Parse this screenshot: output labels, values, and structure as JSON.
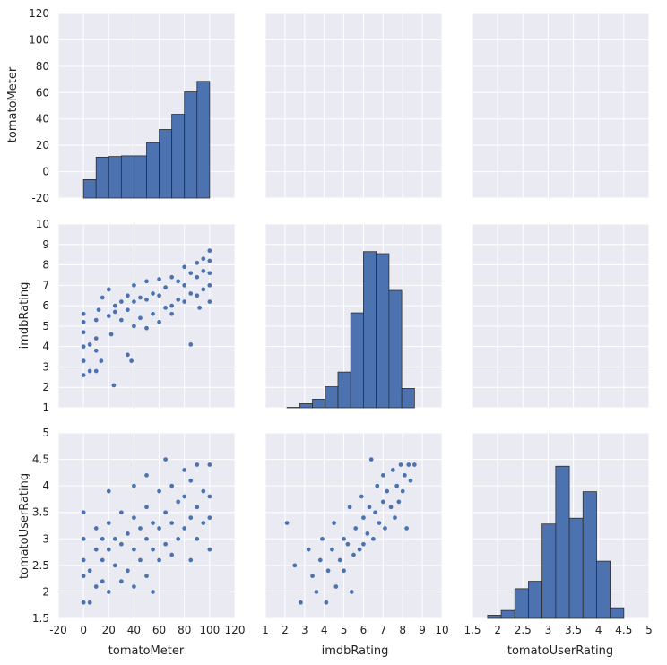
{
  "colors": {
    "panel_bg": "#EAEAF2",
    "grid": "#FFFFFF",
    "bar": "#4C72B0",
    "point": "#4C72B0",
    "edge": "#2d2d2d"
  },
  "chart_data": {
    "type": "scatter",
    "kind": "pairplot",
    "grid": true,
    "variables": [
      "tomatoMeter",
      "imdbRating",
      "tomatoUserRating"
    ],
    "axes": {
      "tomatoMeter": {
        "label": "tomatoMeter",
        "range": [
          -20,
          120
        ],
        "ticks": [
          -20,
          0,
          20,
          40,
          60,
          80,
          100,
          120
        ]
      },
      "imdbRating": {
        "label": "imdbRating",
        "range": [
          1,
          10
        ],
        "ticks": [
          1,
          2,
          3,
          4,
          5,
          6,
          7,
          8,
          9,
          10
        ]
      },
      "tomatoUserRating": {
        "label": "tomatoUserRating",
        "range": [
          1.5,
          5.0
        ],
        "ticks": [
          1.5,
          2.0,
          2.5,
          3.0,
          3.5,
          4.0,
          4.5,
          5.0
        ]
      }
    },
    "histograms": {
      "tomatoMeter": {
        "bin_edges": [
          0,
          10,
          20,
          30,
          40,
          50,
          60,
          70,
          80,
          90,
          100
        ],
        "heights": [
          -6,
          11,
          11.5,
          12,
          12,
          22,
          32,
          43.5,
          60.5,
          68.5
        ]
      },
      "imdbRating": {
        "bin_edges": [
          2.1,
          2.75,
          3.4,
          4.05,
          4.7,
          5.35,
          6.0,
          6.65,
          7.3,
          7.95,
          8.6
        ],
        "heights": [
          1.02,
          1.2,
          1.42,
          2.03,
          2.75,
          5.65,
          8.65,
          8.55,
          6.75,
          1.95
        ]
      },
      "tomatoUserRating": {
        "bin_edges": [
          1.8,
          2.07,
          2.34,
          2.61,
          2.88,
          3.15,
          3.42,
          3.69,
          3.96,
          4.23,
          4.5
        ],
        "heights": [
          1.56,
          1.65,
          2.06,
          2.2,
          3.28,
          4.37,
          3.39,
          3.89,
          2.58,
          1.7
        ]
      }
    },
    "scatter": {
      "tomatoMeter_vs_imdbRating": [
        [
          0,
          2.6
        ],
        [
          0,
          3.3
        ],
        [
          0,
          4.0
        ],
        [
          0,
          4.7
        ],
        [
          0,
          5.2
        ],
        [
          0,
          5.6
        ],
        [
          5,
          2.8
        ],
        [
          10,
          2.8
        ],
        [
          5,
          4.1
        ],
        [
          10,
          3.8
        ],
        [
          10,
          4.4
        ],
        [
          14,
          3.3
        ],
        [
          10,
          5.3
        ],
        [
          12,
          5.8
        ],
        [
          15,
          6.4
        ],
        [
          20,
          5.5
        ],
        [
          20,
          6.8
        ],
        [
          22,
          4.6
        ],
        [
          25,
          5.7
        ],
        [
          25,
          6.0
        ],
        [
          30,
          5.3
        ],
        [
          30,
          6.2
        ],
        [
          35,
          3.6
        ],
        [
          35,
          5.8
        ],
        [
          35,
          6.5
        ],
        [
          40,
          5.0
        ],
        [
          40,
          6.2
        ],
        [
          40,
          7.0
        ],
        [
          45,
          5.4
        ],
        [
          45,
          6.4
        ],
        [
          50,
          4.9
        ],
        [
          50,
          6.3
        ],
        [
          50,
          7.2
        ],
        [
          55,
          5.6
        ],
        [
          55,
          6.6
        ],
        [
          60,
          5.2
        ],
        [
          60,
          6.5
        ],
        [
          60,
          7.3
        ],
        [
          65,
          5.9
        ],
        [
          65,
          6.9
        ],
        [
          70,
          6.0
        ],
        [
          70,
          7.4
        ],
        [
          75,
          6.3
        ],
        [
          75,
          7.2
        ],
        [
          80,
          6.2
        ],
        [
          80,
          7.0
        ],
        [
          80,
          7.9
        ],
        [
          85,
          4.1
        ],
        [
          85,
          6.6
        ],
        [
          85,
          7.6
        ],
        [
          90,
          6.5
        ],
        [
          90,
          7.4
        ],
        [
          90,
          8.1
        ],
        [
          95,
          6.8
        ],
        [
          95,
          7.7
        ],
        [
          95,
          8.3
        ],
        [
          100,
          6.2
        ],
        [
          100,
          7.0
        ],
        [
          100,
          7.6
        ],
        [
          100,
          8.2
        ],
        [
          100,
          8.7
        ],
        [
          24,
          2.1
        ],
        [
          38,
          3.3
        ],
        [
          70,
          5.6
        ],
        [
          92,
          5.9
        ]
      ],
      "tomatoMeter_vs_tomatoUserRating": [
        [
          0,
          1.8
        ],
        [
          0,
          2.3
        ],
        [
          0,
          2.6
        ],
        [
          0,
          3.0
        ],
        [
          0,
          3.5
        ],
        [
          5,
          1.8
        ],
        [
          5,
          2.4
        ],
        [
          10,
          2.1
        ],
        [
          10,
          2.8
        ],
        [
          10,
          3.2
        ],
        [
          15,
          2.2
        ],
        [
          15,
          2.6
        ],
        [
          15,
          3.0
        ],
        [
          20,
          2.0
        ],
        [
          20,
          2.8
        ],
        [
          20,
          3.3
        ],
        [
          20,
          3.9
        ],
        [
          25,
          2.5
        ],
        [
          25,
          3.0
        ],
        [
          30,
          2.2
        ],
        [
          30,
          2.9
        ],
        [
          30,
          3.5
        ],
        [
          35,
          2.4
        ],
        [
          35,
          3.1
        ],
        [
          40,
          2.1
        ],
        [
          40,
          2.8
        ],
        [
          40,
          3.4
        ],
        [
          40,
          4.0
        ],
        [
          45,
          2.6
        ],
        [
          45,
          3.2
        ],
        [
          50,
          2.3
        ],
        [
          50,
          3.0
        ],
        [
          50,
          3.6
        ],
        [
          50,
          4.2
        ],
        [
          55,
          2.0
        ],
        [
          55,
          2.8
        ],
        [
          55,
          3.3
        ],
        [
          60,
          2.6
        ],
        [
          60,
          3.2
        ],
        [
          60,
          3.9
        ],
        [
          65,
          2.9
        ],
        [
          65,
          3.5
        ],
        [
          65,
          4.5
        ],
        [
          70,
          2.7
        ],
        [
          70,
          3.3
        ],
        [
          70,
          4.0
        ],
        [
          75,
          3.0
        ],
        [
          75,
          3.7
        ],
        [
          80,
          3.2
        ],
        [
          80,
          3.8
        ],
        [
          80,
          4.3
        ],
        [
          85,
          2.6
        ],
        [
          85,
          3.4
        ],
        [
          85,
          4.1
        ],
        [
          90,
          3.0
        ],
        [
          90,
          3.6
        ],
        [
          90,
          4.4
        ],
        [
          95,
          3.3
        ],
        [
          95,
          3.9
        ],
        [
          100,
          2.8
        ],
        [
          100,
          3.4
        ],
        [
          100,
          3.8
        ],
        [
          100,
          4.4
        ]
      ],
      "imdbRating_vs_tomatoUserRating": [
        [
          2.1,
          3.3
        ],
        [
          2.5,
          2.5
        ],
        [
          2.8,
          1.8
        ],
        [
          3.2,
          2.8
        ],
        [
          3.4,
          2.3
        ],
        [
          3.6,
          2.0
        ],
        [
          3.8,
          2.6
        ],
        [
          3.9,
          3.0
        ],
        [
          4.1,
          1.8
        ],
        [
          4.2,
          2.4
        ],
        [
          4.4,
          2.8
        ],
        [
          4.5,
          3.3
        ],
        [
          4.6,
          2.1
        ],
        [
          4.8,
          2.6
        ],
        [
          5.0,
          2.4
        ],
        [
          5.0,
          3.0
        ],
        [
          5.2,
          2.9
        ],
        [
          5.3,
          3.6
        ],
        [
          5.4,
          2.0
        ],
        [
          5.5,
          2.7
        ],
        [
          5.6,
          3.2
        ],
        [
          5.8,
          2.8
        ],
        [
          5.9,
          3.8
        ],
        [
          6.0,
          2.9
        ],
        [
          6.0,
          3.4
        ],
        [
          6.2,
          3.1
        ],
        [
          6.3,
          3.6
        ],
        [
          6.4,
          4.5
        ],
        [
          6.5,
          3.0
        ],
        [
          6.6,
          3.5
        ],
        [
          6.7,
          4.0
        ],
        [
          6.8,
          3.3
        ],
        [
          7.0,
          3.7
        ],
        [
          7.0,
          4.2
        ],
        [
          7.1,
          3.2
        ],
        [
          7.2,
          3.9
        ],
        [
          7.4,
          3.6
        ],
        [
          7.5,
          4.3
        ],
        [
          7.6,
          3.4
        ],
        [
          7.7,
          4.0
        ],
        [
          7.8,
          3.7
        ],
        [
          7.9,
          4.4
        ],
        [
          8.0,
          3.9
        ],
        [
          8.1,
          4.2
        ],
        [
          8.2,
          3.2
        ],
        [
          8.3,
          4.4
        ],
        [
          8.4,
          4.1
        ],
        [
          8.6,
          4.4
        ]
      ]
    }
  }
}
